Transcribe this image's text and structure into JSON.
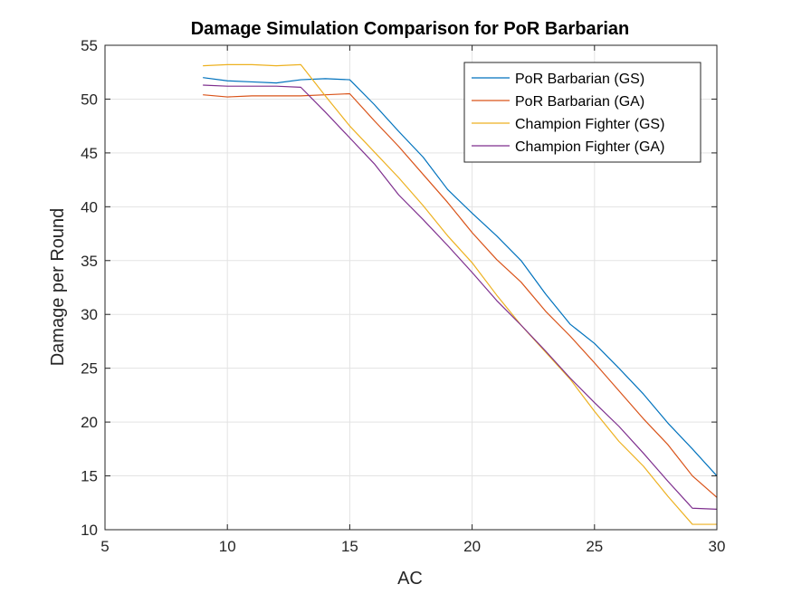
{
  "chart_data": {
    "type": "line",
    "title": "Damage Simulation Comparison for PoR Barbarian",
    "xlabel": "AC",
    "ylabel": "Damage per Round",
    "xlim": [
      5,
      30
    ],
    "ylim": [
      10,
      55
    ],
    "xticks": [
      5,
      10,
      15,
      20,
      25,
      30
    ],
    "yticks": [
      10,
      15,
      20,
      25,
      30,
      35,
      40,
      45,
      50,
      55
    ],
    "grid": true,
    "legend_position": "top-right",
    "x": [
      9,
      10,
      11,
      12,
      13,
      14,
      15,
      16,
      17,
      18,
      19,
      20,
      21,
      22,
      23,
      24,
      25,
      26,
      27,
      28,
      29,
      30
    ],
    "series": [
      {
        "name": "PoR Barbarian (GS)",
        "color": "#0072BD",
        "values": [
          52.0,
          51.7,
          51.6,
          51.5,
          51.8,
          51.9,
          51.8,
          49.5,
          47.0,
          44.6,
          41.6,
          39.4,
          37.3,
          35.0,
          31.9,
          29.1,
          27.3,
          25.0,
          22.6,
          19.9,
          17.5,
          15.0
        ]
      },
      {
        "name": "PoR Barbarian (GA)",
        "color": "#D95319",
        "values": [
          50.4,
          50.2,
          50.3,
          50.3,
          50.3,
          50.4,
          50.5,
          48.0,
          45.6,
          43.0,
          40.4,
          37.6,
          35.1,
          33.0,
          30.3,
          28.0,
          25.5,
          22.9,
          20.3,
          17.9,
          15.0,
          13.0
        ]
      },
      {
        "name": "Champion Fighter (GS)",
        "color": "#EDB120",
        "values": [
          53.1,
          53.2,
          53.2,
          53.1,
          53.2,
          50.3,
          47.5,
          45.1,
          42.7,
          40.1,
          37.3,
          34.8,
          31.8,
          29.0,
          26.5,
          24.0,
          21.0,
          18.2,
          15.9,
          13.1,
          10.5,
          10.5
        ]
      },
      {
        "name": "Champion Fighter (GA)",
        "color": "#7E2F8E",
        "values": [
          51.3,
          51.2,
          51.2,
          51.2,
          51.1,
          48.8,
          46.4,
          44.0,
          41.1,
          38.8,
          36.4,
          33.9,
          31.3,
          29.0,
          26.6,
          24.1,
          21.8,
          19.6,
          17.1,
          14.5,
          12.0,
          11.9
        ]
      }
    ]
  }
}
